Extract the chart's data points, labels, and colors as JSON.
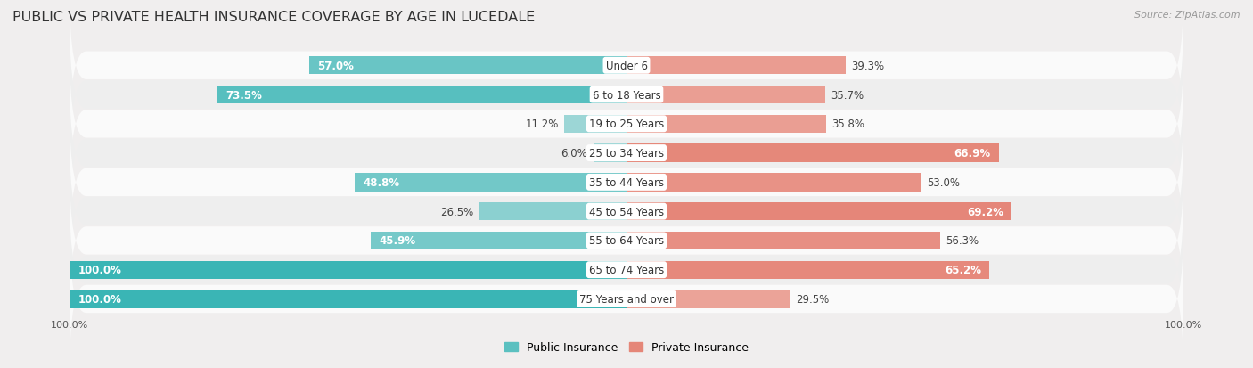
{
  "title": "PUBLIC VS PRIVATE HEALTH INSURANCE COVERAGE BY AGE IN LUCEDALE",
  "source": "Source: ZipAtlas.com",
  "categories": [
    "Under 6",
    "6 to 18 Years",
    "19 to 25 Years",
    "25 to 34 Years",
    "35 to 44 Years",
    "45 to 54 Years",
    "55 to 64 Years",
    "65 to 74 Years",
    "75 Years and over"
  ],
  "public_values": [
    57.0,
    73.5,
    11.2,
    6.0,
    48.8,
    26.5,
    45.9,
    100.0,
    100.0
  ],
  "private_values": [
    39.3,
    35.7,
    35.8,
    66.9,
    53.0,
    69.2,
    56.3,
    65.2,
    29.5
  ],
  "public_color_strong": "#3ab5b5",
  "public_color_light": "#a8dada",
  "private_color_strong": "#e07060",
  "private_color_light": "#f0b8b0",
  "bg_color": "#f0eeee",
  "row_color_light": "#fafafa",
  "row_color_dark": "#eeeeee",
  "legend_public": "Public Insurance",
  "legend_private": "Private Insurance",
  "max_val": 100.0,
  "bar_height": 0.62,
  "title_fontsize": 11.5,
  "label_fontsize": 8.5,
  "category_fontsize": 8.5,
  "source_fontsize": 8,
  "footer_fontsize": 8,
  "strong_threshold": 50.0
}
